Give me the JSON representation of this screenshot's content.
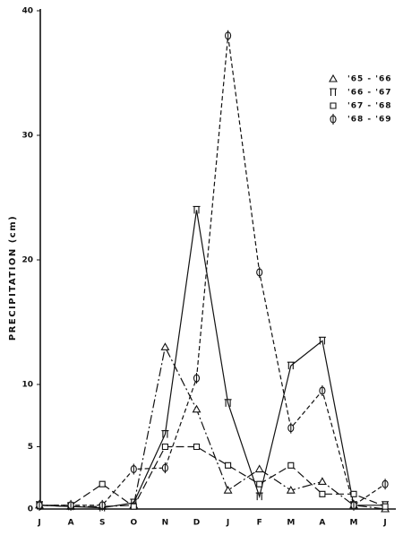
{
  "chart_data": {
    "type": "line",
    "y_label": "PRECIPITATION (cm)",
    "categories": [
      "J",
      "A",
      "S",
      "O",
      "N",
      "D",
      "J",
      "F",
      "M",
      "A",
      "M",
      "J"
    ],
    "ylim": [
      0,
      40
    ],
    "yticks": [
      0,
      5,
      10,
      20,
      30,
      40
    ],
    "series": [
      {
        "name": "'65 - '66",
        "color": "#111111",
        "marker": "triangle",
        "line_style": "dashdot",
        "values": [
          0.3,
          0.2,
          0.2,
          0.3,
          13,
          8,
          1.5,
          3.2,
          1.5,
          2.2,
          0.3,
          0
        ]
      },
      {
        "name": "'66 - '67",
        "color": "#111111",
        "marker": "pi",
        "line_style": "solid",
        "values": [
          0.3,
          0.2,
          0.1,
          0.5,
          6,
          24,
          8.5,
          1,
          11.5,
          13.5,
          0.3,
          0.3
        ]
      },
      {
        "name": "'67 - '68",
        "color": "#111111",
        "marker": "square",
        "line_style": "longdash",
        "values": [
          0.3,
          0.3,
          2,
          0.2,
          5,
          5,
          3.5,
          2,
          3.5,
          1.2,
          1.2,
          0.2
        ]
      },
      {
        "name": "'68 - '69",
        "color": "#111111",
        "marker": "phi",
        "line_style": "dashed",
        "values": [
          0.3,
          0.3,
          0.3,
          3.2,
          3.3,
          10.5,
          38,
          19,
          6.5,
          9.5,
          0.3,
          2
        ]
      }
    ]
  }
}
